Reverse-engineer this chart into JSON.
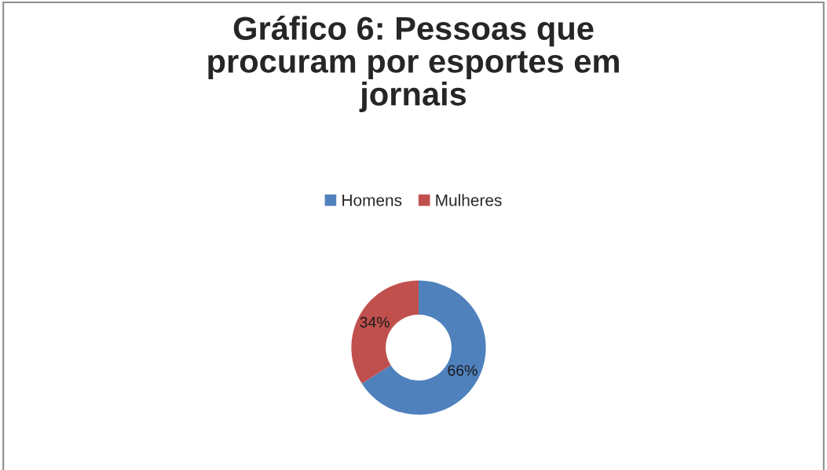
{
  "chart_data": {
    "type": "donut",
    "title": "Gráfico 6: Pessoas que\nprocuram por esportes em\njornais",
    "categories": [
      "Homens",
      "Mulheres"
    ],
    "values": [
      66,
      34
    ],
    "colors": [
      "#4f81bd",
      "#c0504d"
    ],
    "value_labels": [
      "66%",
      "34%"
    ],
    "legend": "top"
  }
}
